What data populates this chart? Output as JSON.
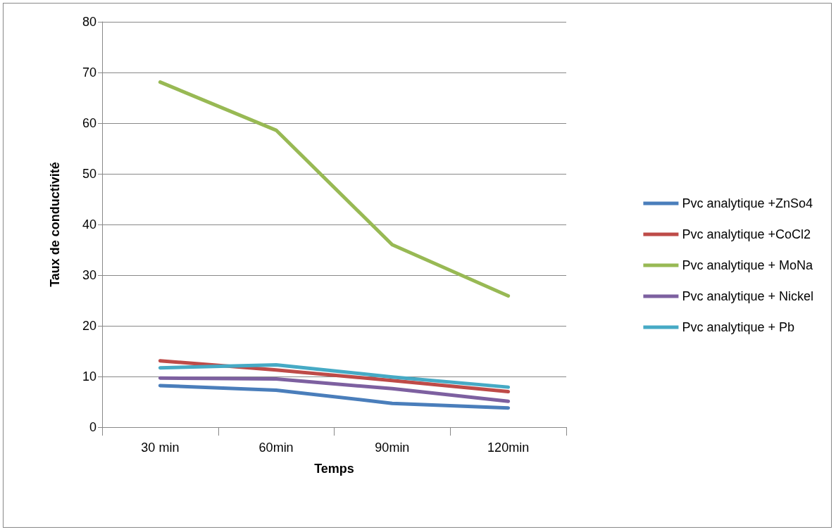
{
  "chart_data": {
    "type": "line",
    "xlabel": "Temps",
    "ylabel": "Taux de conductivité",
    "categories": [
      "30 min",
      "60min",
      "90min",
      "120min"
    ],
    "series": [
      {
        "name": "Pvc analytique +ZnSo4",
        "color": "#4a7ebb",
        "values": [
          8.2,
          7.3,
          4.7,
          3.8
        ]
      },
      {
        "name": "Pvc analytique +CoCl2",
        "color": "#be4b48",
        "values": [
          13.1,
          11.3,
          9.2,
          7.0
        ]
      },
      {
        "name": "Pvc analytique + MoNa",
        "color": "#98b954",
        "values": [
          68.1,
          58.6,
          36,
          25.9
        ]
      },
      {
        "name": "Pvc analytique + Nickel",
        "color": "#7d60a0",
        "values": [
          9.7,
          9.5,
          7.6,
          5.1
        ]
      },
      {
        "name": "Pvc analytique + Pb",
        "color": "#46aac5",
        "values": [
          11.7,
          12.3,
          9.9,
          7.9
        ]
      }
    ],
    "ylim": [
      0,
      80
    ],
    "yticks": [
      0,
      10,
      20,
      30,
      40,
      50,
      60,
      70,
      80
    ],
    "grid": "y",
    "legend": "right",
    "marker": "none",
    "line_style": "solid"
  }
}
